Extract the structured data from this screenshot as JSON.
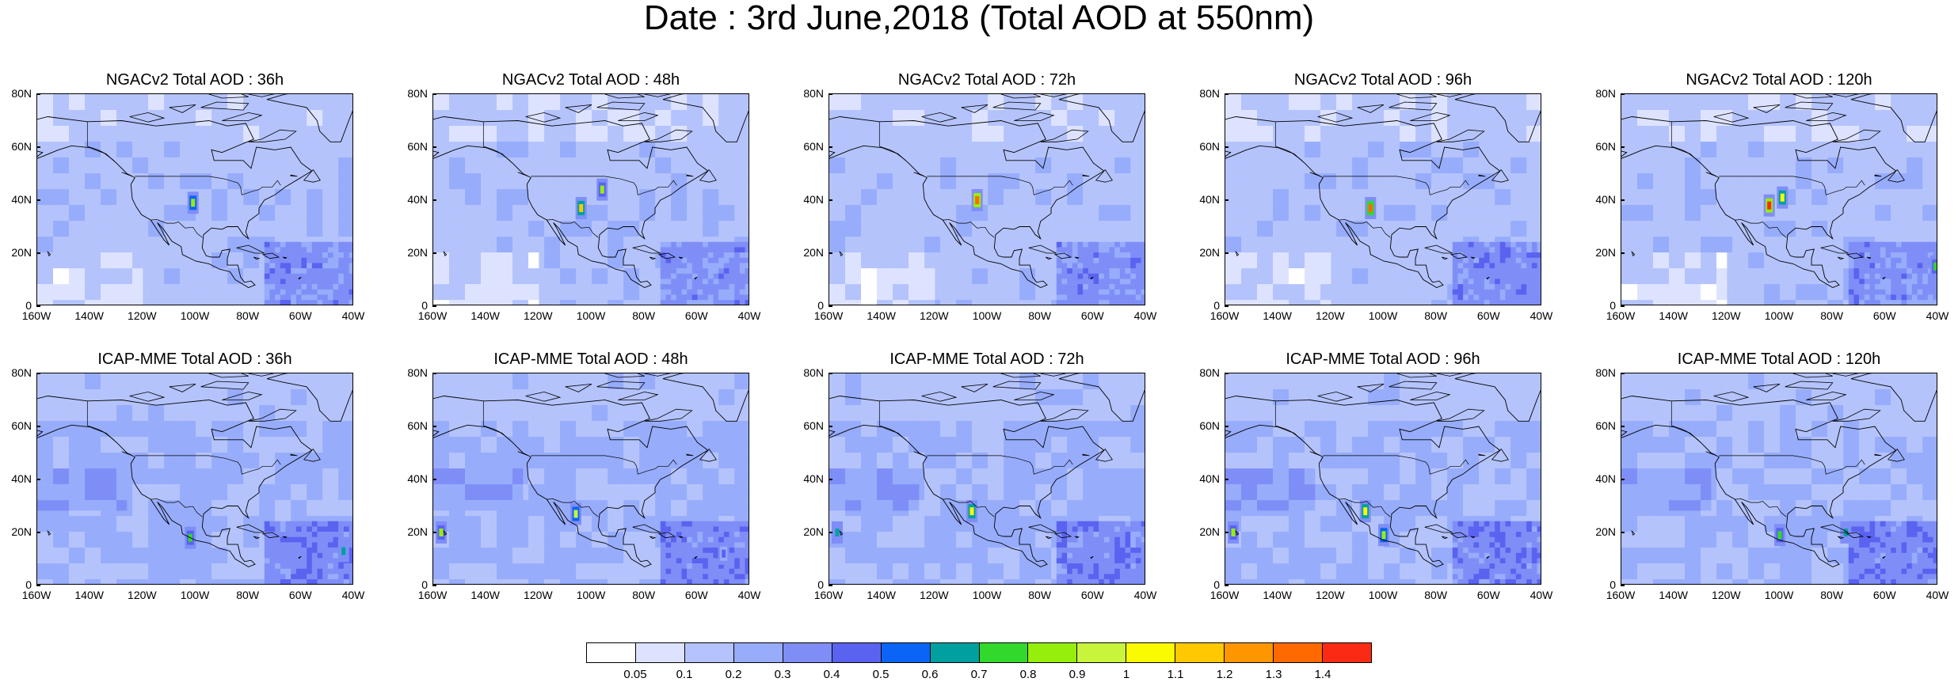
{
  "title": "Date : 3rd June,2018 (Total AOD at 550nm)",
  "x_ticks": [
    "160W",
    "140W",
    "120W",
    "100W",
    "80W",
    "60W",
    "40W"
  ],
  "y_ticks": [
    "80N",
    "60N",
    "40N",
    "20N",
    "0"
  ],
  "panels": [
    {
      "title": "NGACv2 Total AOD : 36h",
      "model": "NGACv2",
      "lead": "36h",
      "plumes": [
        {
          "lon": -101,
          "lat": 39,
          "aod": 0.85
        }
      ]
    },
    {
      "title": "NGACv2 Total AOD : 48h",
      "model": "NGACv2",
      "lead": "48h",
      "plumes": [
        {
          "lon": -104,
          "lat": 37,
          "aod": 1.1
        },
        {
          "lon": -96,
          "lat": 44,
          "aod": 0.8
        }
      ]
    },
    {
      "title": "NGACv2 Total AOD : 72h",
      "model": "NGACv2",
      "lead": "72h",
      "plumes": [
        {
          "lon": -104,
          "lat": 40,
          "aod": 1.35
        }
      ]
    },
    {
      "title": "NGACv2 Total AOD : 96h",
      "model": "NGACv2",
      "lead": "96h",
      "plumes": [
        {
          "lon": -105,
          "lat": 37,
          "aod": 1.3
        }
      ]
    },
    {
      "title": "NGACv2 Total AOD : 120h",
      "model": "NGACv2",
      "lead": "120h",
      "plumes": [
        {
          "lon": -104,
          "lat": 38,
          "aod": 1.4
        },
        {
          "lon": -99,
          "lat": 41,
          "aod": 1.0
        },
        {
          "lon": -41,
          "lat": 15,
          "aod": 0.7
        }
      ]
    },
    {
      "title": "ICAP-MME Total AOD : 36h",
      "model": "ICAP-MME",
      "lead": "36h",
      "plumes": [
        {
          "lon": -102,
          "lat": 18,
          "aod": 0.7
        },
        {
          "lon": -44,
          "lat": 13,
          "aod": 0.65
        }
      ]
    },
    {
      "title": "ICAP-MME Total AOD : 48h",
      "model": "ICAP-MME",
      "lead": "48h",
      "plumes": [
        {
          "lon": -157,
          "lat": 20,
          "aod": 0.8
        },
        {
          "lon": -106,
          "lat": 27,
          "aod": 0.9
        },
        {
          "lon": -50,
          "lat": 12,
          "aod": 0.45
        }
      ]
    },
    {
      "title": "ICAP-MME Total AOD : 72h",
      "model": "ICAP-MME",
      "lead": "72h",
      "plumes": [
        {
          "lon": -106,
          "lat": 28,
          "aod": 1.0
        },
        {
          "lon": -157,
          "lat": 20,
          "aod": 0.6
        }
      ]
    },
    {
      "title": "ICAP-MME Total AOD : 96h",
      "model": "ICAP-MME",
      "lead": "96h",
      "plumes": [
        {
          "lon": -107,
          "lat": 28,
          "aod": 1.0
        },
        {
          "lon": -157,
          "lat": 20,
          "aod": 0.8
        },
        {
          "lon": -100,
          "lat": 19,
          "aod": 0.85
        }
      ]
    },
    {
      "title": "ICAP-MME Total AOD : 120h",
      "model": "ICAP-MME",
      "lead": "120h",
      "plumes": [
        {
          "lon": -100,
          "lat": 19,
          "aod": 0.7
        },
        {
          "lon": -75,
          "lat": 20,
          "aod": 0.6
        }
      ]
    }
  ],
  "colorbar": {
    "labels": [
      "0.05",
      "0.1",
      "0.2",
      "0.3",
      "0.4",
      "0.5",
      "0.6",
      "0.7",
      "0.8",
      "0.9",
      "1",
      "1.1",
      "1.2",
      "1.3",
      "1.4"
    ],
    "colors": [
      "#ffffff",
      "#dde3ff",
      "#b4c3fb",
      "#97acfb",
      "#7f8ef7",
      "#5a62f0",
      "#0a64f5",
      "#00a0a0",
      "#32d82c",
      "#96ee0c",
      "#c8f53c",
      "#fafa00",
      "#ffc800",
      "#ff9600",
      "#ff6a00",
      "#fa2a14"
    ]
  }
}
